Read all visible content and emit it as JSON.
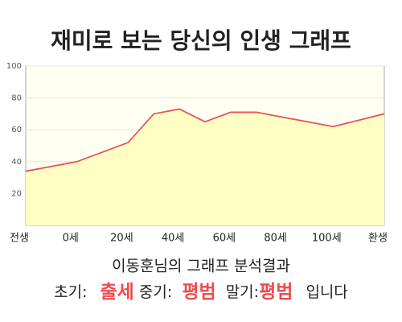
{
  "chart_data": {
    "type": "area",
    "title": "재미로 보는 당신의 인생 그래프",
    "categories": [
      "전생",
      null,
      "0세",
      null,
      "20세",
      null,
      "40세",
      null,
      "60세",
      null,
      "80세",
      null,
      "100세",
      null,
      "환생"
    ],
    "values": [
      34,
      37,
      40,
      46,
      52,
      70,
      73,
      65,
      71,
      71,
      68,
      65,
      62,
      66,
      70
    ],
    "color": "#e8505f",
    "fill": "#ffffc4",
    "ylim": [
      0,
      100
    ],
    "yticks": [
      20,
      40,
      60,
      80,
      100
    ],
    "grid": true
  },
  "result": {
    "heading": "이동훈님의 그래프 분석결과",
    "early_label": "초기:",
    "early": "출세",
    "mid_label": "중기:",
    "mid": "평범",
    "late_label": "말기:",
    "late": "평범",
    "suffix": "입니다"
  }
}
